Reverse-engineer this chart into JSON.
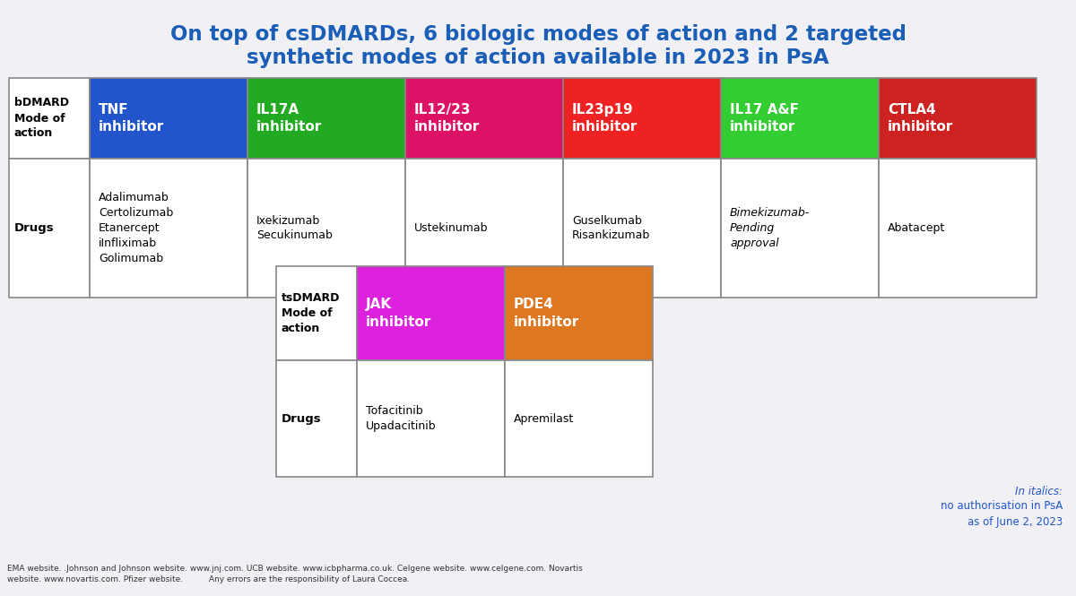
{
  "title_line1": "On top of csDMARDs, 6 biologic modes of action and 2 targeted",
  "title_line2": "synthetic modes of action available in 2023 in PsA",
  "title_color": "#1a5eb8",
  "title_fontsize": 16.5,
  "bg_color": "#f0f0f5",
  "table_border_color": "#888888",
  "bdmard_header_label": "bDMARD\nMode of\naction",
  "bdmard_drugs_label": "Drugs",
  "bdmard_cols": [
    {
      "label": "TNF\ninhibitor",
      "color": "#2255cc",
      "drugs": "Adalimumab\nCertolizumab\nEtanercept\niInfliximab\nGolimumab",
      "italic": false
    },
    {
      "label": "IL17A\ninhibitor",
      "color": "#22aa22",
      "drugs": "Ixekizumab\nSecukinumab",
      "italic": false
    },
    {
      "label": "IL12/23\ninhibitor",
      "color": "#dd1166",
      "drugs": "Ustekinumab",
      "italic": false
    },
    {
      "label": "IL23p19\ninhibitor",
      "color": "#ee2222",
      "drugs": "Guselkumab\nRisankizumab",
      "italic": false
    },
    {
      "label": "IL17 A&F\ninhibitor",
      "color": "#33cc33",
      "drugs": "Bimekizumab-\nPending\napproval",
      "italic": true
    },
    {
      "label": "CTLA4\ninhibitor",
      "color": "#cc2222",
      "drugs": "Abatacept",
      "italic": false
    }
  ],
  "tsdmard_header_label": "tsDMARD\nMode of\naction",
  "tsdmard_drugs_label": "Drugs",
  "tsdmard_cols": [
    {
      "label": "JAK\ninhibitor",
      "color": "#dd22dd",
      "drugs": "Tofacitinib\nUpadacitinib"
    },
    {
      "label": "PDE4\ninhibitor",
      "color": "#dd7722",
      "drugs": "Apremilast"
    }
  ],
  "footnote_italic": "In italics:",
  "footnote_text": "no authorisation in PsA\nas of June 2, 2023",
  "footnote_color": "#2255cc",
  "source_text": "EMA website. .Johnson and Johnson website. www.jnj.com. UCB website. www.icbpharma.co.uk. Celgene website. www.celgene.com. Novartis\nwebsite. www.novartis.com. Pfizer website.          Any errors are the responsibility of Laura Coccea.",
  "source_fontsize": 6.5
}
